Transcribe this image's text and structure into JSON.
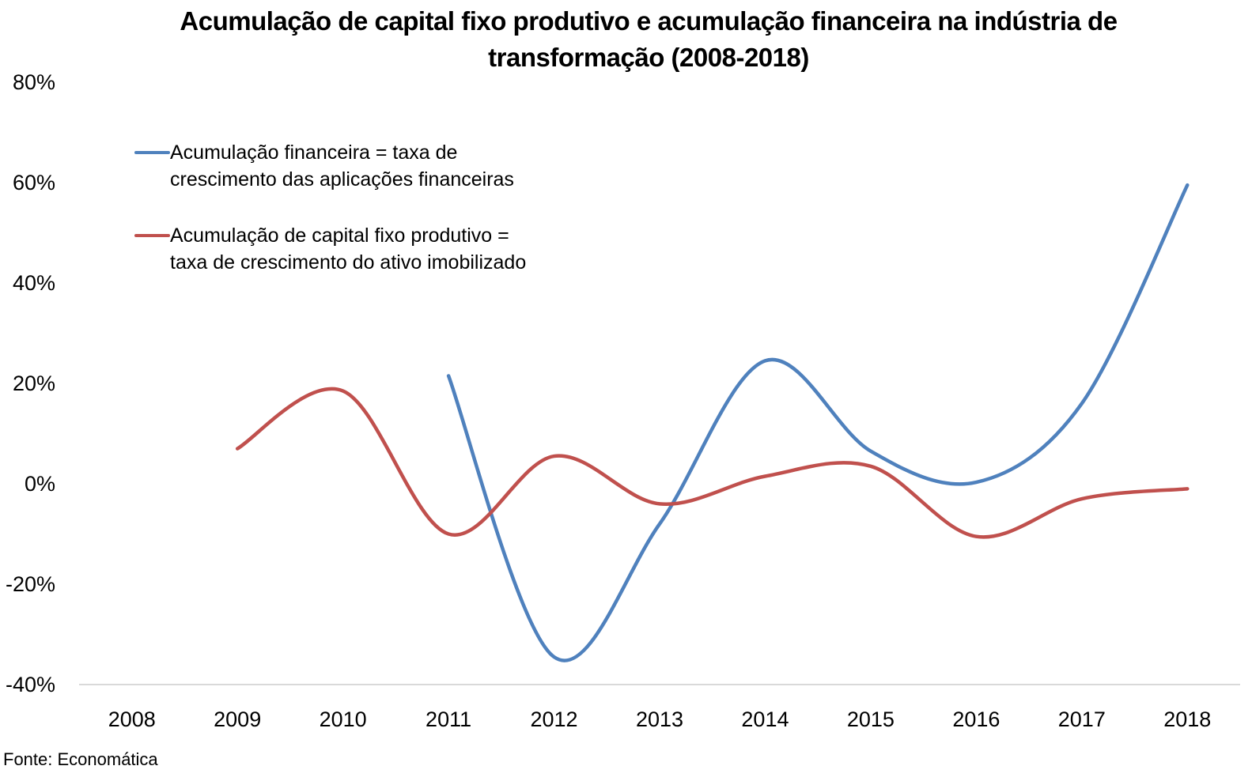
{
  "chart_data": {
    "type": "line",
    "title": "Acumulação de capital fixo produtivo e acumulação financeira na indústria de transformação (2008-2018)",
    "title_lines": [
      "Acumulação de capital fixo produtivo e acumulação financeira na indústria de",
      "transformação (2008-2018)"
    ],
    "xlabel": "",
    "ylabel": "",
    "categories": [
      "2008",
      "2009",
      "2010",
      "2011",
      "2012",
      "2013",
      "2014",
      "2015",
      "2016",
      "2017",
      "2018"
    ],
    "y_ticks": [
      "80%",
      "60%",
      "40%",
      "20%",
      "0%",
      "-20%",
      "-40%"
    ],
    "ylim": [
      -40,
      80
    ],
    "grid": false,
    "legend_position": "top-left",
    "series": [
      {
        "name": "Acumulação financeira = taxa de crescimento das aplicações financeiras",
        "legend_lines": [
          "Acumulação financeira = taxa de",
          "crescimento das aplicações financeiras"
        ],
        "color": "#4F81BD",
        "values": [
          null,
          null,
          null,
          21.5,
          -34.5,
          -8,
          24.5,
          6.5,
          0.3,
          16,
          59.5
        ]
      },
      {
        "name": "Acumulação de capital fixo produtivo = taxa de crescimento do ativo imobilizado",
        "legend_lines": [
          "Acumulação de capital fixo produtivo =",
          "taxa de crescimento do ativo imobilizado"
        ],
        "color": "#C0504D",
        "values": [
          null,
          7,
          18.5,
          -10,
          5.5,
          -4,
          1.5,
          3.5,
          -10.5,
          -3,
          -1
        ]
      }
    ]
  },
  "footer": {
    "source": "Fonte: Economática"
  }
}
